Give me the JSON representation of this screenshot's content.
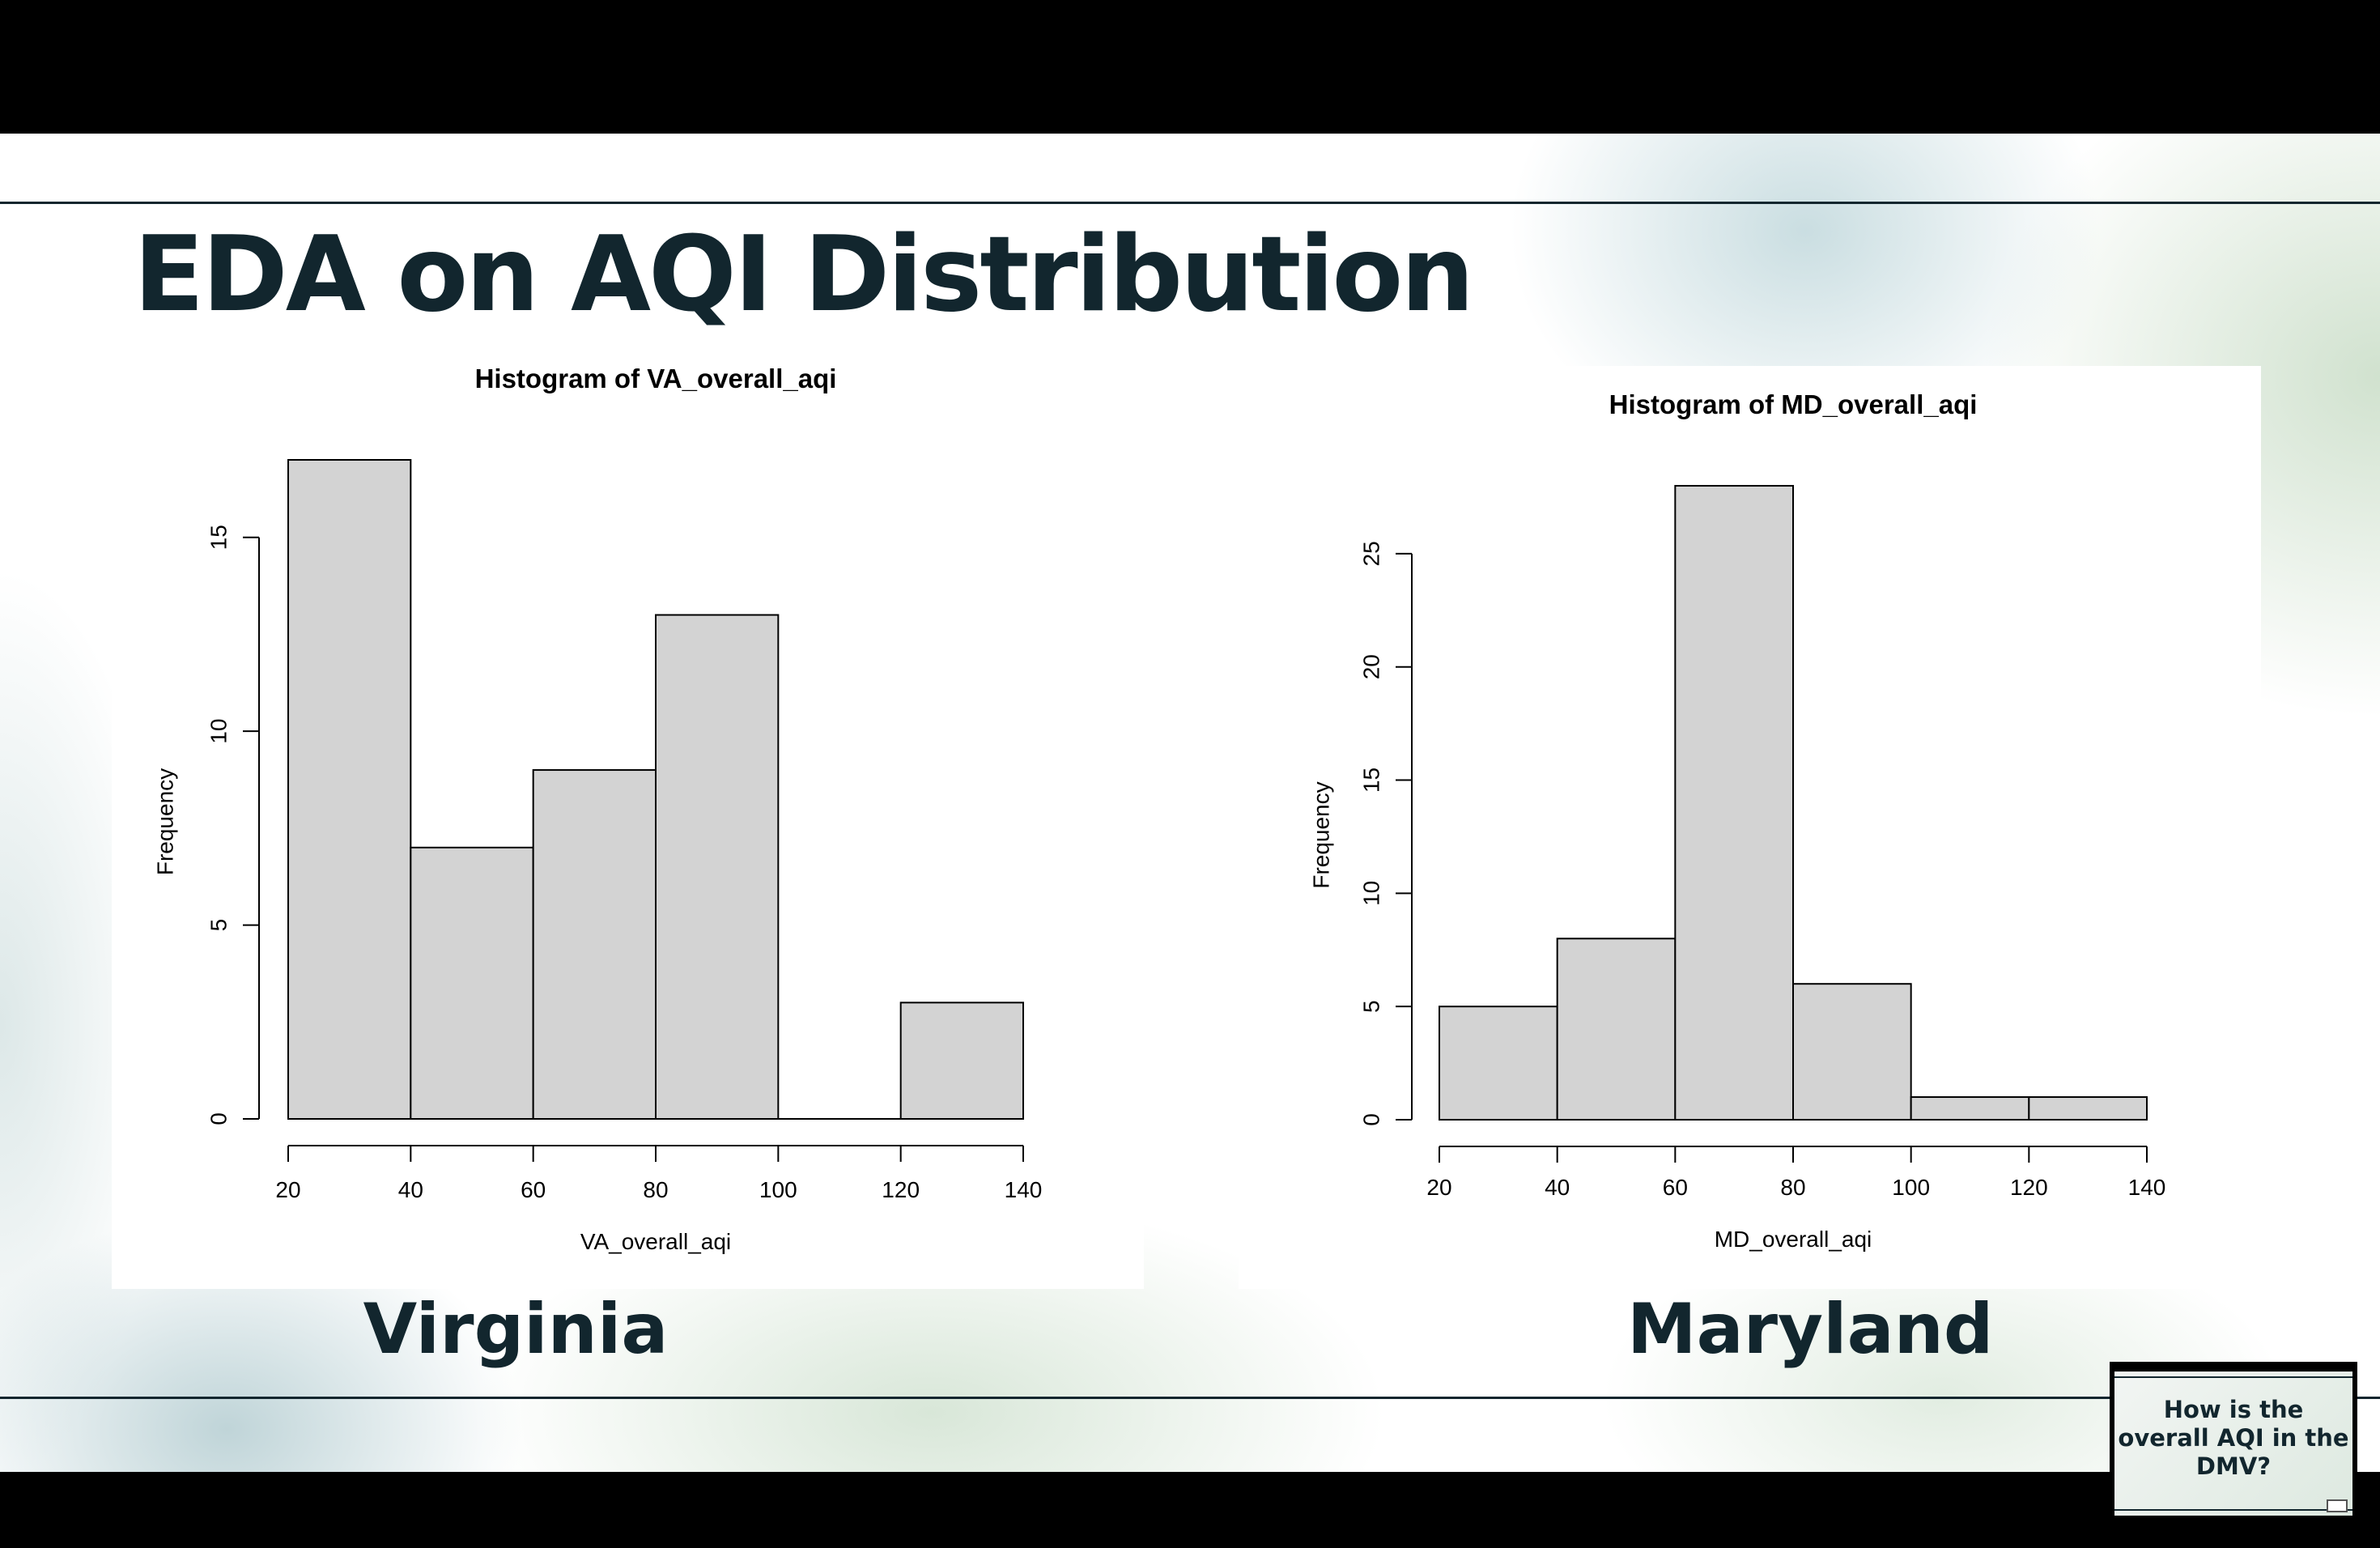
{
  "slide": {
    "title": "EDA on AQI Distribution",
    "left_caption": "Virginia",
    "right_caption": "Maryland",
    "thumbnail_text": "How is the overall AQI in the DMV?"
  },
  "colors": {
    "title": "#12262e",
    "bar_fill": "#d3d3d3",
    "bar_stroke": "#000000"
  },
  "chart_data": [
    {
      "type": "bar",
      "title": "Histogram of VA_overall_aqi",
      "xlabel": "VA_overall_aqi",
      "ylabel": "Frequency",
      "bins": [
        [
          20,
          40
        ],
        [
          40,
          60
        ],
        [
          60,
          80
        ],
        [
          80,
          100
        ],
        [
          100,
          120
        ],
        [
          120,
          140
        ]
      ],
      "values": [
        17,
        7,
        9,
        13,
        0,
        3
      ],
      "x_ticks": [
        20,
        40,
        60,
        80,
        100,
        120,
        140
      ],
      "y_ticks": [
        0,
        5,
        10,
        15
      ],
      "xlim": [
        20,
        140
      ],
      "ylim": [
        0,
        17
      ],
      "grid": false
    },
    {
      "type": "bar",
      "title": "Histogram of MD_overall_aqi",
      "xlabel": "MD_overall_aqi",
      "ylabel": "Frequency",
      "bins": [
        [
          20,
          40
        ],
        [
          40,
          60
        ],
        [
          60,
          80
        ],
        [
          80,
          100
        ],
        [
          100,
          120
        ],
        [
          120,
          140
        ]
      ],
      "values": [
        5,
        8,
        28,
        6,
        1,
        1
      ],
      "x_ticks": [
        20,
        40,
        60,
        80,
        100,
        120,
        140
      ],
      "y_ticks": [
        0,
        5,
        10,
        15,
        20,
        25
      ],
      "xlim": [
        20,
        140
      ],
      "ylim": [
        0,
        28
      ],
      "grid": false
    }
  ]
}
